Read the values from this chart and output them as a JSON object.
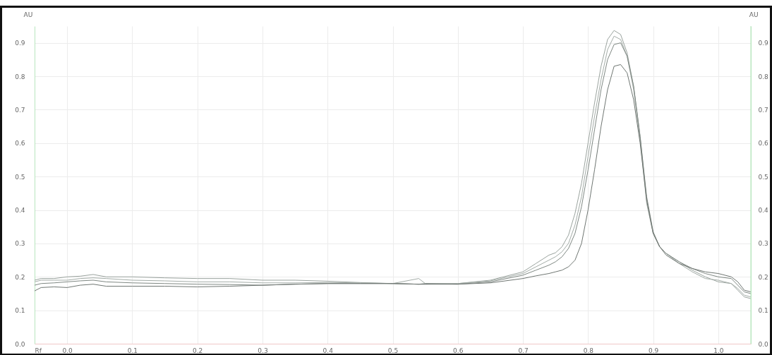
{
  "chart_data": {
    "type": "line",
    "xlabel": "Rf",
    "ylabel": "AU",
    "y2label": "AU",
    "x": [
      -0.05,
      -0.04,
      -0.02,
      0,
      0.02,
      0.04,
      0.06,
      0.1,
      0.15,
      0.2,
      0.25,
      0.3,
      0.35,
      0.4,
      0.45,
      0.5,
      0.54,
      0.55,
      0.6,
      0.65,
      0.7,
      0.72,
      0.74,
      0.75,
      0.76,
      0.77,
      0.78,
      0.79,
      0.8,
      0.81,
      0.82,
      0.83,
      0.84,
      0.85,
      0.86,
      0.87,
      0.88,
      0.89,
      0.9,
      0.91,
      0.92,
      0.94,
      0.96,
      0.98,
      1.0,
      1.02,
      1.03,
      1.04,
      1.05
    ],
    "series": [
      {
        "color": "#9aa39e",
        "values": [
          0.19,
          0.195,
          0.195,
          0.2,
          0.202,
          0.207,
          0.2,
          0.2,
          0.197,
          0.195,
          0.195,
          0.19,
          0.19,
          0.187,
          0.183,
          0.18,
          0.178,
          0.178,
          0.18,
          0.19,
          0.215,
          0.24,
          0.265,
          0.272,
          0.29,
          0.325,
          0.39,
          0.48,
          0.6,
          0.72,
          0.83,
          0.91,
          0.937,
          0.925,
          0.87,
          0.77,
          0.62,
          0.43,
          0.33,
          0.29,
          0.27,
          0.245,
          0.22,
          0.2,
          0.185,
          0.18,
          0.16,
          0.14,
          0.135
        ]
      },
      {
        "color": "#a3aca7",
        "values": [
          0.185,
          0.19,
          0.19,
          0.19,
          0.195,
          0.197,
          0.195,
          0.19,
          0.188,
          0.185,
          0.185,
          0.182,
          0.182,
          0.183,
          0.182,
          0.18,
          0.195,
          0.18,
          0.18,
          0.188,
          0.21,
          0.23,
          0.25,
          0.26,
          0.275,
          0.3,
          0.355,
          0.44,
          0.56,
          0.68,
          0.79,
          0.88,
          0.92,
          0.91,
          0.86,
          0.76,
          0.61,
          0.42,
          0.33,
          0.29,
          0.27,
          0.24,
          0.215,
          0.195,
          0.19,
          0.18,
          0.165,
          0.145,
          0.14
        ]
      },
      {
        "color": "#7f8883",
        "values": [
          0.175,
          0.18,
          0.182,
          0.185,
          0.188,
          0.19,
          0.185,
          0.182,
          0.18,
          0.178,
          0.177,
          0.175,
          0.178,
          0.18,
          0.18,
          0.18,
          0.178,
          0.18,
          0.178,
          0.185,
          0.205,
          0.22,
          0.235,
          0.245,
          0.26,
          0.285,
          0.33,
          0.41,
          0.52,
          0.64,
          0.76,
          0.85,
          0.895,
          0.9,
          0.86,
          0.77,
          0.62,
          0.44,
          0.335,
          0.29,
          0.27,
          0.245,
          0.225,
          0.21,
          0.2,
          0.195,
          0.175,
          0.155,
          0.15
        ]
      },
      {
        "color": "#6f7672",
        "values": [
          0.158,
          0.168,
          0.17,
          0.168,
          0.175,
          0.178,
          0.172,
          0.172,
          0.172,
          0.17,
          0.172,
          0.175,
          0.178,
          0.18,
          0.18,
          0.18,
          0.178,
          0.178,
          0.178,
          0.182,
          0.195,
          0.203,
          0.21,
          0.215,
          0.22,
          0.23,
          0.25,
          0.3,
          0.4,
          0.52,
          0.65,
          0.76,
          0.83,
          0.835,
          0.81,
          0.73,
          0.6,
          0.43,
          0.33,
          0.29,
          0.265,
          0.24,
          0.225,
          0.215,
          0.21,
          0.2,
          0.185,
          0.16,
          0.155
        ]
      }
    ],
    "xlim": [
      -0.05,
      1.05
    ],
    "xticks": [
      {
        "value": 0,
        "label": "0.0"
      },
      0.1,
      0.2,
      0.3,
      0.4,
      0.5,
      0.6,
      0.7,
      0.8,
      0.9,
      {
        "value": 1,
        "label": "1.0"
      }
    ],
    "ylim": [
      0,
      0.95
    ],
    "yticks": [
      {
        "value": 0,
        "label": "0.0"
      },
      0.1,
      0.2,
      0.3,
      0.4,
      0.5,
      0.6,
      0.7,
      0.8,
      0.9
    ],
    "y2lim": [
      0,
      0.95
    ],
    "y2ticks": [
      {
        "value": 0,
        "label": "0.0"
      },
      0.1,
      0.2,
      0.3,
      0.4,
      0.5,
      0.6,
      0.7,
      0.8,
      0.9
    ],
    "grid": true,
    "line_style": "solid"
  }
}
